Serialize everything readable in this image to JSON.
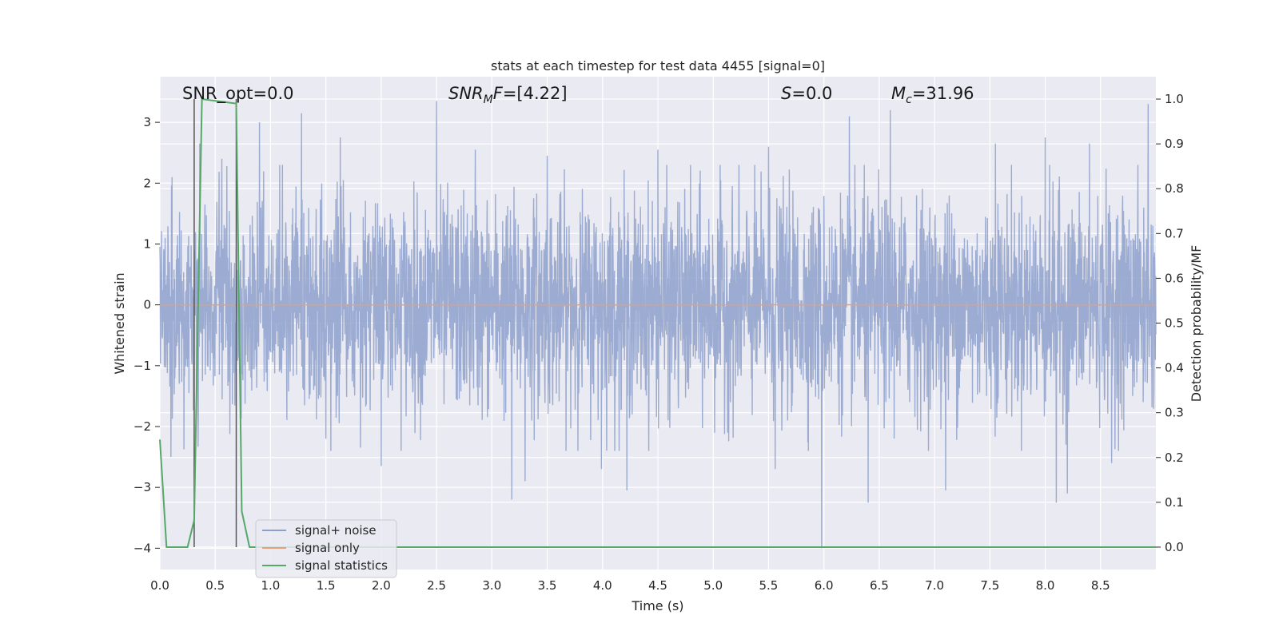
{
  "chart_data": {
    "type": "line",
    "title": "stats at each timestep for test data 4455 [signal=0]",
    "xlabel": "Time (s)",
    "ylabel_left": "Whitened strain",
    "ylabel_right": "Detection probability/MF",
    "xlim": [
      0.0,
      9.0
    ],
    "ylim_left": [
      -4.35,
      3.75
    ],
    "ylim_right": [
      -0.05,
      1.05
    ],
    "x_ticks": [
      "0.0",
      "0.5",
      "1.0",
      "1.5",
      "2.0",
      "2.5",
      "3.0",
      "3.5",
      "4.0",
      "4.5",
      "5.0",
      "5.5",
      "6.0",
      "6.5",
      "7.0",
      "7.5",
      "8.0",
      "8.5"
    ],
    "y_left_ticks": [
      "3",
      "2",
      "1",
      "0",
      "−1",
      "−2",
      "−3",
      "−4"
    ],
    "y_right_ticks": [
      "1.0",
      "0.9",
      "0.8",
      "0.7",
      "0.6",
      "0.5",
      "0.4",
      "0.3",
      "0.2",
      "0.1",
      "0.0"
    ],
    "grid": true,
    "annotations": {
      "snr_opt": "SNR_opt=0.0",
      "snr_mf_main": "SNR",
      "snr_mf_sub": "M",
      "snr_mf_italic_tail": "F",
      "snr_mf_value": "=[4.22]",
      "s_main": "S",
      "s_value": "=0.0",
      "mc_main": "M",
      "mc_sub": "c",
      "mc_value": "=31.96"
    },
    "series": [
      {
        "name": "signal+ noise",
        "axis": "left",
        "color": "#8da0cb",
        "description_values": "noise band, roughly within -2 to 2, extremes 3.35 and -4.0",
        "peaks": [
          [
            0.11,
            2.1
          ],
          [
            0.36,
            2.65
          ],
          [
            0.56,
            2.4
          ],
          [
            0.9,
            3.0
          ],
          [
            1.28,
            3.15
          ],
          [
            1.63,
            2.75
          ],
          [
            2.0,
            2.6
          ],
          [
            2.5,
            3.35
          ],
          [
            2.85,
            2.55
          ],
          [
            3.5,
            2.45
          ],
          [
            4.5,
            2.55
          ],
          [
            5.5,
            2.6
          ],
          [
            6.23,
            3.1
          ],
          [
            6.6,
            3.2
          ],
          [
            7.55,
            2.65
          ],
          [
            8.0,
            2.75
          ],
          [
            8.4,
            2.65
          ],
          [
            8.93,
            3.3
          ]
        ],
        "troughs": [
          [
            0.1,
            -2.5
          ],
          [
            1.5,
            -2.2
          ],
          [
            2.0,
            -2.65
          ],
          [
            3.18,
            -3.2
          ],
          [
            3.3,
            -2.9
          ],
          [
            3.99,
            -2.7
          ],
          [
            4.22,
            -3.05
          ],
          [
            5.56,
            -2.7
          ],
          [
            5.98,
            -4.0
          ],
          [
            6.4,
            -3.25
          ],
          [
            7.1,
            -3.05
          ],
          [
            8.1,
            -3.25
          ],
          [
            8.2,
            -3.1
          ],
          [
            8.6,
            -2.6
          ]
        ]
      },
      {
        "name": "signal only",
        "axis": "left",
        "color": "#e5a07a",
        "x": [
          0.0,
          9.0
        ],
        "y": [
          0.0,
          0.0
        ]
      },
      {
        "name": "signal statistics",
        "axis": "right",
        "color": "#55a868",
        "x": [
          0.0,
          0.06,
          0.25,
          0.31,
          0.38,
          0.69,
          0.74,
          0.81,
          9.0
        ],
        "y": [
          0.24,
          0.0,
          0.0,
          0.06,
          1.0,
          0.99,
          0.08,
          0.0,
          0.0
        ]
      }
    ],
    "vertical_markers_x": [
      0.31,
      0.69
    ],
    "legend": {
      "position": "lower-left",
      "entries": [
        "signal+ noise",
        "signal only",
        "signal statistics"
      ]
    }
  },
  "colors": {
    "plot_bg": "#eaeaf2",
    "grid": "#ffffff",
    "noise": "#8da0cb",
    "signal": "#e5a07a",
    "stat": "#55a868",
    "marker": "#555555"
  }
}
